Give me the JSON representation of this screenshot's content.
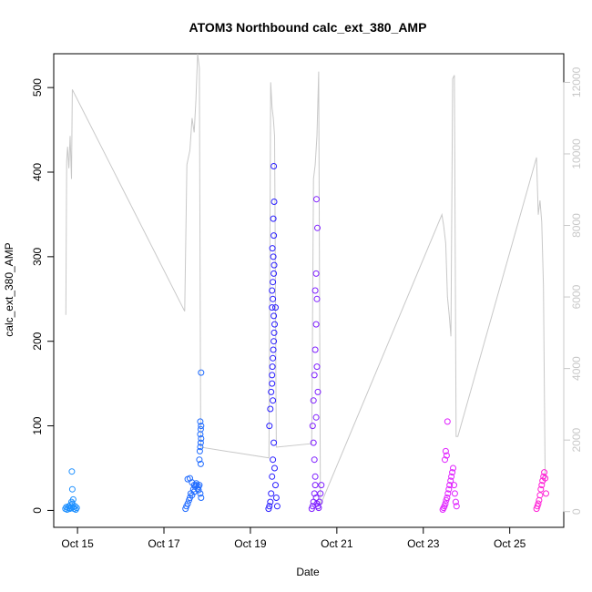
{
  "chart_data": {
    "type": "scatter",
    "title": "ATOM3 Northbound calc_ext_380_AMP",
    "xlabel": "Date",
    "ylabel": "calc_ext_380_AMP",
    "x_tick_labels": [
      "Oct 15",
      "Oct 17",
      "Oct 19",
      "Oct 21",
      "Oct 23",
      "Oct 25"
    ],
    "x_ticks_day": [
      15,
      17,
      19,
      21,
      23,
      25
    ],
    "xlim_day": [
      14.45,
      26.25
    ],
    "ylim": [
      -20,
      540
    ],
    "y_ticks": [
      0,
      100,
      200,
      300,
      400,
      500
    ],
    "y2lim": [
      -440,
      12800
    ],
    "y2_ticks": [
      0,
      2000,
      4000,
      6000,
      8000,
      10000,
      12000
    ],
    "grid": false,
    "colors": {
      "oct14": "#1e90ff",
      "oct17": "#1f6bff",
      "oct19": "#2a1fff",
      "oct20": "#7f1fff",
      "oct23": "#e01fff",
      "oct25": "#ff1fd6",
      "line": "#c8c8c8"
    },
    "series": [
      {
        "color_key": "oct14",
        "x_day": [
          14.72,
          14.74,
          14.76,
          14.78,
          14.8,
          14.82,
          14.84,
          14.86,
          14.88,
          14.9,
          14.92,
          14.94,
          14.96,
          14.98,
          14.87,
          14.88,
          14.9,
          14.86
        ],
        "values": [
          2,
          4,
          1,
          3,
          5,
          2,
          6,
          3,
          8,
          4,
          2,
          5,
          1,
          3,
          46,
          25,
          13,
          10
        ]
      },
      {
        "color_key": "oct17",
        "x_day": [
          17.5,
          17.52,
          17.55,
          17.58,
          17.6,
          17.62,
          17.65,
          17.68,
          17.7,
          17.72,
          17.75,
          17.78,
          17.8,
          17.82,
          17.84,
          17.86,
          17.55,
          17.6,
          17.65,
          17.7,
          17.75,
          17.8,
          17.82,
          17.83,
          17.84,
          17.85,
          17.86,
          17.84,
          17.85,
          17.86,
          17.84,
          17.85,
          17.86
        ],
        "values": [
          2,
          5,
          8,
          12,
          15,
          20,
          18,
          25,
          22,
          28,
          30,
          26,
          24,
          30,
          20,
          15,
          37,
          38,
          33,
          30,
          32,
          28,
          60,
          70,
          75,
          80,
          85,
          90,
          96,
          100,
          105,
          55,
          163
        ]
      },
      {
        "color_key": "oct19",
        "x_day": [
          19.42,
          19.44,
          19.46,
          19.48,
          19.5,
          19.52,
          19.54,
          19.56,
          19.58,
          19.6,
          19.62,
          19.44,
          19.46,
          19.48,
          19.5,
          19.52,
          19.54,
          19.56,
          19.58,
          19.5,
          19.52,
          19.54,
          19.55,
          19.53,
          19.51,
          19.5,
          19.52,
          19.54,
          19.55,
          19.53,
          19.51,
          19.5,
          19.52,
          19.54,
          19.53,
          19.55,
          19.54
        ],
        "values": [
          2,
          5,
          10,
          20,
          40,
          60,
          80,
          50,
          30,
          15,
          5,
          100,
          120,
          140,
          160,
          180,
          200,
          220,
          240,
          260,
          270,
          280,
          290,
          300,
          310,
          240,
          250,
          230,
          210,
          190,
          170,
          150,
          130,
          325,
          345,
          365,
          407
        ]
      },
      {
        "color_key": "oct20",
        "x_day": [
          20.42,
          20.44,
          20.46,
          20.48,
          20.5,
          20.52,
          20.54,
          20.56,
          20.58,
          20.6,
          20.62,
          20.64,
          20.44,
          20.46,
          20.48,
          20.5,
          20.52,
          20.54,
          20.56,
          20.46,
          20.48,
          20.5,
          20.52,
          20.54,
          20.5,
          20.52,
          20.55,
          20.53
        ],
        "values": [
          2,
          5,
          10,
          20,
          30,
          15,
          8,
          5,
          3,
          10,
          20,
          30,
          100,
          130,
          160,
          190,
          220,
          250,
          140,
          80,
          60,
          40,
          110,
          170,
          260,
          280,
          334,
          368
        ]
      },
      {
        "color_key": "oct23",
        "x_day": [
          23.45,
          23.47,
          23.49,
          23.51,
          23.53,
          23.55,
          23.57,
          23.59,
          23.61,
          23.63,
          23.65,
          23.67,
          23.69,
          23.71,
          23.73,
          23.75,
          23.77,
          23.5,
          23.52,
          23.54,
          23.56
        ],
        "values": [
          1,
          3,
          5,
          8,
          12,
          15,
          20,
          25,
          30,
          35,
          40,
          45,
          50,
          30,
          20,
          10,
          5,
          60,
          70,
          65,
          105
        ]
      },
      {
        "color_key": "oct25",
        "x_day": [
          25.62,
          25.64,
          25.66,
          25.68,
          25.7,
          25.72,
          25.74,
          25.76,
          25.78,
          25.8,
          25.82,
          25.84
        ],
        "values": [
          2,
          5,
          8,
          12,
          18,
          25,
          30,
          35,
          40,
          45,
          38,
          20
        ]
      }
    ],
    "y2_series": {
      "color_key": "line",
      "x_day": [
        14.73,
        14.75,
        14.77,
        14.8,
        14.83,
        14.86,
        14.88,
        17.48,
        17.53,
        17.6,
        17.65,
        17.7,
        17.74,
        17.78,
        17.82,
        17.85,
        19.43,
        19.47,
        19.5,
        19.53,
        19.56,
        19.6,
        20.42,
        20.46,
        20.5,
        20.54,
        20.58,
        20.62,
        23.43,
        23.47,
        23.52,
        23.56,
        23.6,
        23.64,
        23.68,
        23.72,
        23.76,
        23.8,
        25.62,
        25.66,
        25.7,
        25.74,
        25.78,
        25.82
      ],
      "values": [
        5500,
        9800,
        10200,
        9600,
        10500,
        9300,
        11800,
        5600,
        9700,
        10100,
        11000,
        10600,
        11500,
        12800,
        12400,
        1800,
        1500,
        12000,
        11300,
        11000,
        10500,
        1800,
        1900,
        9300,
        9700,
        10500,
        12300,
        180,
        8300,
        8000,
        7500,
        6000,
        5500,
        4900,
        12100,
        12200,
        2100,
        2100,
        9900,
        8300,
        8700,
        8100,
        6300,
        800
      ]
    }
  }
}
